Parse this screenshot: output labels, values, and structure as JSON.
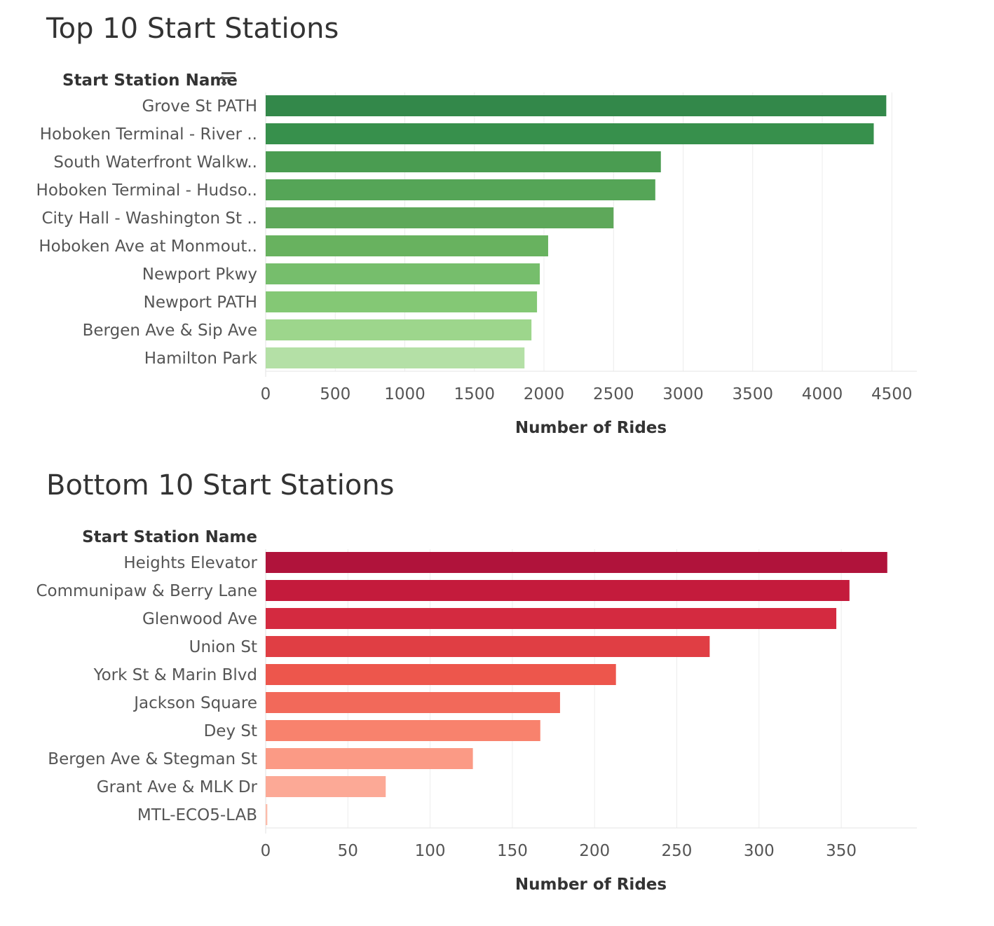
{
  "chart_data": [
    {
      "type": "bar",
      "orientation": "horizontal",
      "title": "Top 10 Start Stations",
      "ylabel": "Start Station Name",
      "xlabel": "Number of Rides",
      "sort_icon": "sort-descending-icon",
      "categories": [
        "Grove St PATH",
        "Hoboken Terminal - River ..",
        "South Waterfront Walkw..",
        "Hoboken Terminal - Hudso..",
        "City Hall - Washington St ..",
        "Hoboken Ave at Monmout..",
        "Newport Pkwy",
        "Newport PATH",
        "Bergen Ave & Sip Ave",
        "Hamilton Park"
      ],
      "values": [
        4460,
        4370,
        2840,
        2800,
        2500,
        2030,
        1970,
        1950,
        1910,
        1860
      ],
      "colors": [
        "#33884a",
        "#37904c",
        "#4a9c51",
        "#55a557",
        "#5ea85a",
        "#68b25f",
        "#76be6c",
        "#84c875",
        "#9dd68c",
        "#b4e0a6"
      ],
      "xlim": [
        0,
        4680
      ],
      "ticks": [
        0,
        500,
        1000,
        1500,
        2000,
        2500,
        3000,
        3500,
        4000,
        4500
      ],
      "grid": true
    },
    {
      "type": "bar",
      "orientation": "horizontal",
      "title": "Bottom 10 Start Stations",
      "ylabel": "Start Station Name",
      "xlabel": "Number of Rides",
      "categories": [
        "Heights Elevator",
        "Communipaw & Berry Lane",
        "Glenwood Ave",
        "Union St",
        "York St & Marin Blvd",
        "Jackson Square",
        "Dey St",
        "Bergen Ave & Stegman St",
        "Grant Ave & MLK Dr",
        "MTL-ECO5-LAB"
      ],
      "values": [
        378,
        355,
        347,
        270,
        213,
        179,
        167,
        126,
        73,
        1
      ],
      "colors": [
        "#b0133b",
        "#c41b3c",
        "#d42a40",
        "#e03e44",
        "#ed564c",
        "#f2695a",
        "#f8826d",
        "#fb9a85",
        "#fca996",
        "#fcbcab"
      ],
      "xlim": [
        0,
        396
      ],
      "ticks": [
        0,
        50,
        100,
        150,
        200,
        250,
        300,
        350
      ],
      "grid": true
    }
  ]
}
